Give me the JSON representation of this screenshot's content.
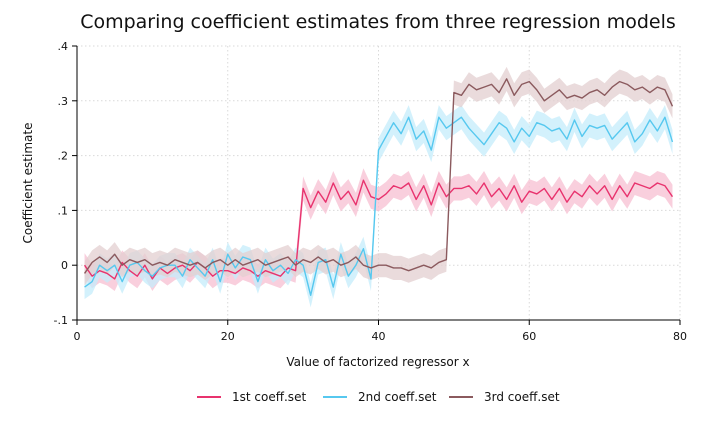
{
  "chart_data": {
    "type": "line",
    "title": "Comparing coefficient estimates from three regression models",
    "xlabel": "Value of factorized regressor x",
    "ylabel": "Coefficient estimate",
    "xlim": [
      0,
      80
    ],
    "ylim": [
      -0.1,
      0.4
    ],
    "xticks": [
      0,
      20,
      40,
      60,
      80
    ],
    "xtick_labels": [
      "0",
      "20",
      "40",
      "60",
      "80"
    ],
    "yticks": [
      -0.1,
      0,
      0.1,
      0.2,
      0.3,
      0.4
    ],
    "ytick_labels": [
      "-.1",
      "0",
      ".1",
      ".2",
      ".3",
      ".4"
    ],
    "grid": true,
    "legend_position": "bottom",
    "ci_halfwidth": 0.022,
    "x": [
      1,
      2,
      3,
      4,
      5,
      6,
      7,
      8,
      9,
      10,
      11,
      12,
      13,
      14,
      15,
      16,
      17,
      18,
      19,
      20,
      21,
      22,
      23,
      24,
      25,
      26,
      27,
      28,
      29,
      30,
      31,
      32,
      33,
      34,
      35,
      36,
      37,
      38,
      39,
      40,
      41,
      42,
      43,
      44,
      45,
      46,
      47,
      48,
      49,
      50,
      51,
      52,
      53,
      54,
      55,
      56,
      57,
      58,
      59,
      60,
      61,
      62,
      63,
      64,
      65,
      66,
      67,
      68,
      69,
      70,
      71,
      72,
      73,
      74,
      75,
      76,
      77,
      78,
      79
    ],
    "series": [
      {
        "name": "1st coeff.set",
        "color": "#e8336e",
        "band_color": "#f7bfd2",
        "values": [
          0.0,
          -0.02,
          -0.01,
          -0.015,
          -0.025,
          0.005,
          -0.01,
          -0.02,
          0.0,
          -0.025,
          -0.005,
          -0.015,
          -0.005,
          0.0,
          -0.01,
          0.005,
          -0.005,
          -0.02,
          -0.01,
          -0.01,
          -0.015,
          -0.005,
          -0.01,
          -0.02,
          -0.01,
          -0.015,
          -0.02,
          -0.005,
          -0.01,
          0.14,
          0.105,
          0.135,
          0.115,
          0.15,
          0.12,
          0.135,
          0.11,
          0.155,
          0.125,
          0.12,
          0.13,
          0.145,
          0.14,
          0.15,
          0.12,
          0.145,
          0.11,
          0.15,
          0.125,
          0.14,
          0.14,
          0.145,
          0.13,
          0.15,
          0.125,
          0.14,
          0.12,
          0.145,
          0.115,
          0.135,
          0.13,
          0.14,
          0.12,
          0.14,
          0.115,
          0.135,
          0.125,
          0.145,
          0.13,
          0.145,
          0.12,
          0.145,
          0.125,
          0.15,
          0.145,
          0.14,
          0.15,
          0.145,
          0.125
        ]
      },
      {
        "name": "2nd coeff.set",
        "color": "#56c8ef",
        "band_color": "#c4ecfb",
        "values": [
          -0.04,
          -0.03,
          0.0,
          -0.01,
          0.0,
          -0.03,
          0.0,
          0.005,
          -0.01,
          -0.02,
          -0.005,
          0.0,
          0.0,
          -0.02,
          0.01,
          -0.005,
          -0.02,
          0.01,
          -0.03,
          0.02,
          -0.005,
          0.015,
          0.01,
          -0.03,
          0.01,
          -0.01,
          0.0,
          -0.015,
          0.01,
          0.0,
          -0.055,
          0.005,
          0.01,
          -0.04,
          0.02,
          -0.02,
          0.0,
          0.03,
          -0.025,
          0.21,
          0.235,
          0.26,
          0.24,
          0.27,
          0.23,
          0.245,
          0.21,
          0.27,
          0.25,
          0.26,
          0.27,
          0.25,
          0.235,
          0.22,
          0.24,
          0.26,
          0.25,
          0.225,
          0.25,
          0.235,
          0.26,
          0.255,
          0.245,
          0.25,
          0.23,
          0.265,
          0.235,
          0.255,
          0.25,
          0.255,
          0.23,
          0.245,
          0.26,
          0.225,
          0.24,
          0.265,
          0.245,
          0.27,
          0.225
        ]
      },
      {
        "name": "3rd coeff.set",
        "color": "#8b5a5e",
        "band_color": "#e3cfd0",
        "values": [
          -0.015,
          0.005,
          0.015,
          0.005,
          0.02,
          0.0,
          0.01,
          0.005,
          0.01,
          0.0,
          0.005,
          0.0,
          0.01,
          0.005,
          0.0,
          0.005,
          -0.005,
          0.005,
          0.01,
          0.0,
          0.01,
          0.0,
          0.005,
          0.01,
          0.0,
          0.005,
          0.01,
          0.015,
          0.0,
          0.01,
          0.005,
          0.015,
          0.005,
          0.01,
          0.0,
          0.005,
          0.015,
          0.0,
          -0.005,
          0.0,
          0.0,
          -0.005,
          -0.005,
          -0.01,
          -0.005,
          0.0,
          -0.005,
          0.005,
          0.01,
          0.315,
          0.31,
          0.33,
          0.32,
          0.325,
          0.33,
          0.315,
          0.34,
          0.31,
          0.33,
          0.335,
          0.32,
          0.3,
          0.31,
          0.32,
          0.305,
          0.31,
          0.305,
          0.315,
          0.32,
          0.31,
          0.325,
          0.335,
          0.33,
          0.32,
          0.325,
          0.315,
          0.325,
          0.32,
          0.29
        ]
      }
    ]
  }
}
